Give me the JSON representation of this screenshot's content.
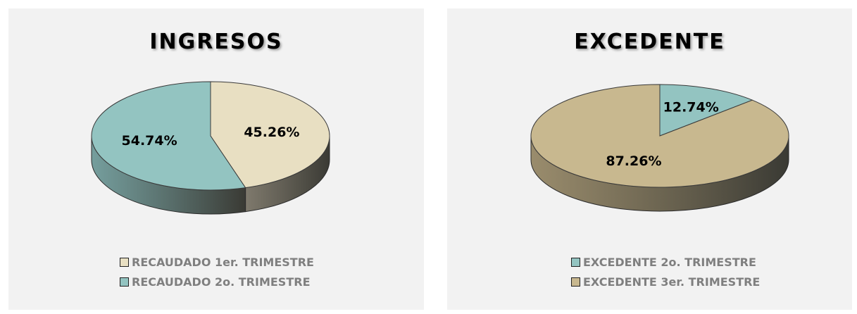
{
  "chart_data": [
    {
      "type": "pie",
      "title": "INGRESOS",
      "slices": [
        {
          "label": "RECAUDADO 1er. TRIMESTRE",
          "value": 45.26,
          "display": "45.26%",
          "color": "#e8dfc2",
          "side_color": "#6a6455"
        },
        {
          "label": "RECAUDADO 2o. TRIMESTRE",
          "value": 54.74,
          "display": "54.74%",
          "color": "#93c4c1",
          "side_color": "#5f8f8e"
        }
      ],
      "legend": "bottom"
    },
    {
      "type": "pie",
      "title": "EXCEDENTE",
      "slices": [
        {
          "label": "EXCEDENTE 2o. TRIMESTRE",
          "value": 12.74,
          "display": "12.74%",
          "color": "#93c4c1",
          "side_color": "#5f8f8e"
        },
        {
          "label": "EXCEDENTE 3er. TRIMESTRE",
          "value": 87.26,
          "display": "87.26%",
          "color": "#c8b88f",
          "side_color": "#8a7a55"
        }
      ],
      "legend": "bottom"
    }
  ]
}
